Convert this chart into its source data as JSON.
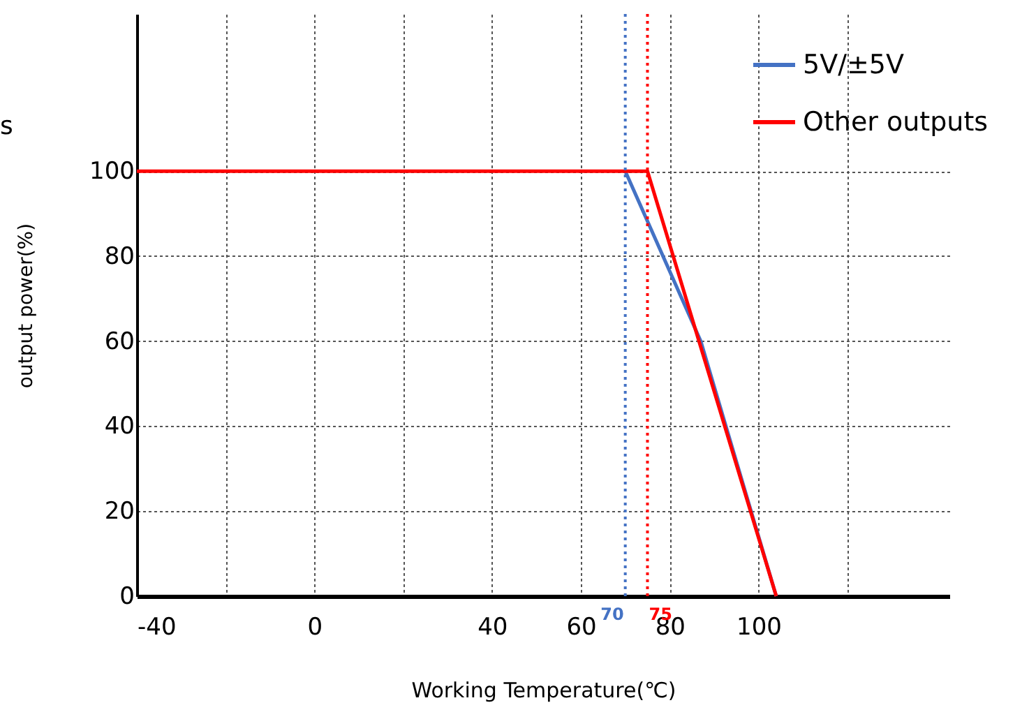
{
  "chart_data": {
    "type": "line",
    "xlabel": "Working Temperature(℃)",
    "ylabel": "output power(%)",
    "xlim": [
      -40,
      143
    ],
    "ylim": [
      0,
      137
    ],
    "xticks": [
      -40,
      {
        "value": -20,
        "label": null
      },
      0,
      {
        "value": 20,
        "label": null
      },
      40,
      60,
      80,
      100,
      {
        "value": 120,
        "label": null
      }
    ],
    "yticks": [
      0,
      20,
      40,
      60,
      80,
      100
    ],
    "grid": true,
    "legend": "top right",
    "line_style": "solid",
    "series": [
      {
        "name": "5V/±5V",
        "color": "#4472c4",
        "x": [
          70,
          87,
          104
        ],
        "values": [
          100,
          60,
          0
        ]
      },
      {
        "name": "Other outputs",
        "color": "#ff0000",
        "x": [
          -40,
          75,
          104
        ],
        "values": [
          100,
          100,
          0
        ]
      }
    ],
    "ref_lines": [
      {
        "axis": "x",
        "value": 70,
        "label": "70",
        "color": "#4472c4",
        "line_style": "dotted"
      },
      {
        "axis": "x",
        "value": 75,
        "label": "75",
        "color": "#ff0000",
        "line_style": "dotted"
      }
    ],
    "annotations": [
      "s"
    ]
  }
}
